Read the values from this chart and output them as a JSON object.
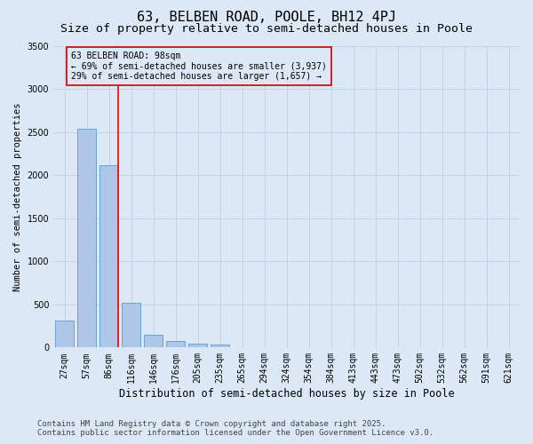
{
  "title": "63, BELBEN ROAD, POOLE, BH12 4PJ",
  "subtitle": "Size of property relative to semi-detached houses in Poole",
  "xlabel": "Distribution of semi-detached houses by size in Poole",
  "ylabel": "Number of semi-detached properties",
  "categories": [
    "27sqm",
    "57sqm",
    "86sqm",
    "116sqm",
    "146sqm",
    "176sqm",
    "205sqm",
    "235sqm",
    "265sqm",
    "294sqm",
    "324sqm",
    "354sqm",
    "384sqm",
    "413sqm",
    "443sqm",
    "473sqm",
    "502sqm",
    "532sqm",
    "562sqm",
    "591sqm",
    "621sqm"
  ],
  "values": [
    310,
    2540,
    2110,
    520,
    150,
    75,
    40,
    30,
    0,
    0,
    0,
    0,
    0,
    0,
    0,
    0,
    0,
    0,
    0,
    0,
    0
  ],
  "bar_color": "#aec6e8",
  "bar_edge_color": "#5b9bd5",
  "grid_color": "#c0d4e8",
  "background_color": "#dce8f5",
  "red_line_x": 2.4,
  "annotation_text": "63 BELBEN ROAD: 98sqm\n← 69% of semi-detached houses are smaller (3,937)\n29% of semi-detached houses are larger (1,657) →",
  "annotation_box_color": "#cc0000",
  "ylim": [
    0,
    3500
  ],
  "yticks": [
    0,
    500,
    1000,
    1500,
    2000,
    2500,
    3000,
    3500
  ],
  "footer_line1": "Contains HM Land Registry data © Crown copyright and database right 2025.",
  "footer_line2": "Contains public sector information licensed under the Open Government Licence v3.0.",
  "title_fontsize": 11,
  "subtitle_fontsize": 9.5,
  "xlabel_fontsize": 8.5,
  "ylabel_fontsize": 7.5,
  "tick_fontsize": 7,
  "annotation_fontsize": 7,
  "footer_fontsize": 6.5
}
